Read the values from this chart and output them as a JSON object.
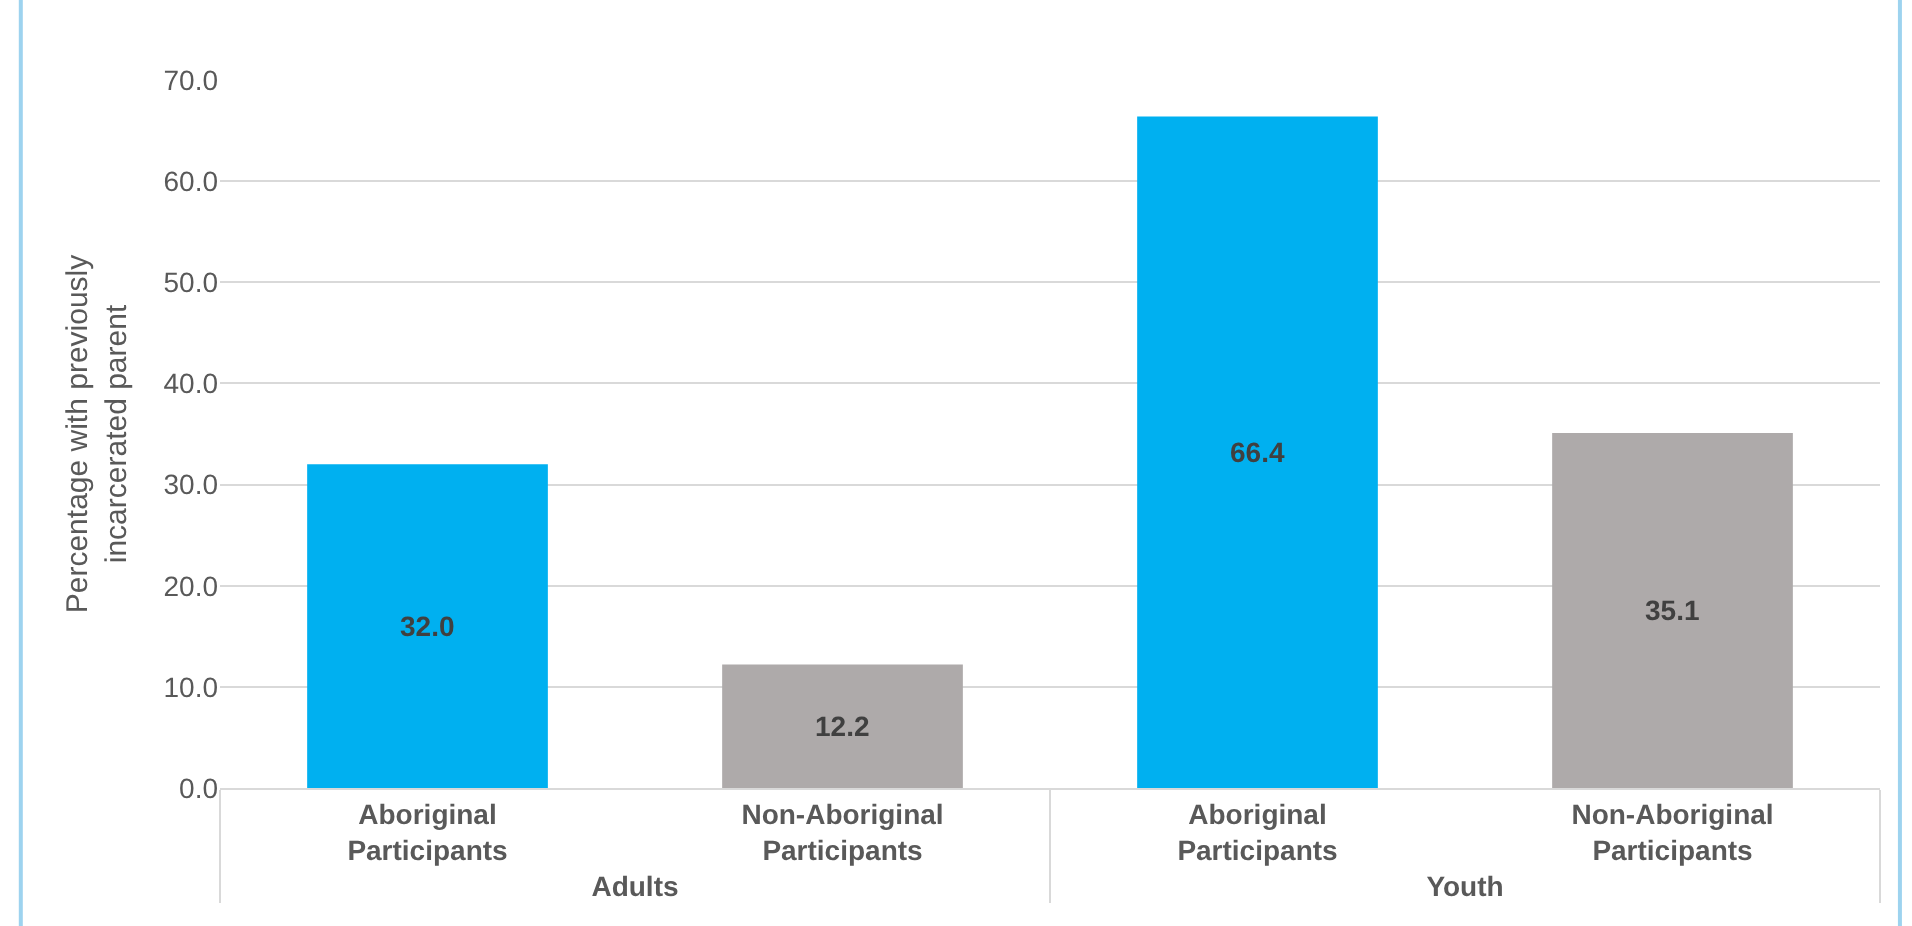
{
  "chart_data": {
    "type": "bar",
    "ylabel": "Percentage with previously incarcerated parent",
    "categories": [
      "Aboriginal Participants",
      "Non-Aboriginal Participants",
      "Aboriginal Participants",
      "Non-Aboriginal Participants"
    ],
    "values": [
      32.0,
      12.2,
      66.4,
      35.1
    ],
    "colors": [
      "#00b0f0",
      "#aeaaaa",
      "#00b0f0",
      "#aeaaaa"
    ],
    "annotations": [
      "Adults",
      "Youth"
    ],
    "ylim": [
      0,
      70
    ],
    "yticks": [
      {
        "value": 0,
        "label": "0.0"
      },
      {
        "value": 10,
        "label": "10.0"
      },
      {
        "value": 20,
        "label": "20.0"
      },
      {
        "value": 30,
        "label": "30.0"
      },
      {
        "value": 40,
        "label": "40.0"
      },
      {
        "value": 50,
        "label": "50.0"
      },
      {
        "value": 60,
        "label": "60.0"
      },
      {
        "value": 70,
        "label": "70.0"
      }
    ],
    "value_labels": [
      "32.0",
      "12.2",
      "66.4",
      "35.1"
    ],
    "grid": "y"
  }
}
